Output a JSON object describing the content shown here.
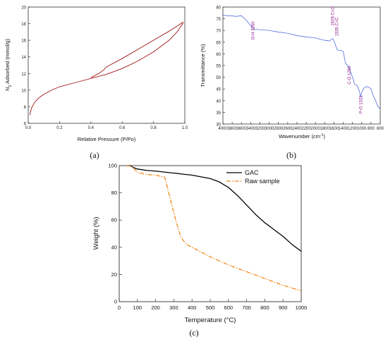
{
  "chart_data": [
    {
      "type": "line",
      "panel": "(a)",
      "xlabel": "Relative Pressure (P/Po)",
      "ylabel": "N2 Adsorbed (mmol/g)",
      "xlim": [
        0.0,
        1.0
      ],
      "ylim": [
        6,
        20
      ],
      "xticks": [
        "0.0",
        "0.2",
        "0.4",
        "0.6",
        "0.8",
        "1.0"
      ],
      "yticks": [
        "6",
        "8",
        "10",
        "12",
        "14",
        "16",
        "18",
        "20"
      ],
      "color": "#a01515",
      "series": [
        {
          "x": [
            0.01,
            0.02,
            0.04,
            0.07,
            0.1,
            0.15,
            0.2,
            0.3,
            0.4,
            0.5,
            0.6,
            0.7,
            0.8,
            0.9,
            0.95,
            0.99
          ],
          "y": [
            7.0,
            7.8,
            8.5,
            9.1,
            9.5,
            10.0,
            10.4,
            10.9,
            11.4,
            11.9,
            12.6,
            13.5,
            14.6,
            16.0,
            17.0,
            18.1
          ]
        },
        {
          "x": [
            0.99,
            0.95,
            0.9,
            0.8,
            0.7,
            0.6,
            0.5,
            0.48,
            0.45,
            0.42,
            0.4
          ],
          "y": [
            18.2,
            17.7,
            17.1,
            16.0,
            14.9,
            13.8,
            12.8,
            12.4,
            12.0,
            11.7,
            11.5
          ]
        }
      ]
    },
    {
      "type": "line",
      "panel": "(b)",
      "xlabel": "Wavenumber (cm⁻¹)",
      "ylabel": "Transmittance (%)",
      "xlim": [
        4000,
        600
      ],
      "ylim": [
        30,
        80
      ],
      "xticks": [
        "4000",
        "3800",
        "3600",
        "3400",
        "3200",
        "3000",
        "2800",
        "2600",
        "2400",
        "2200",
        "2000",
        "1800",
        "1600",
        "1400",
        "1200",
        "1000",
        "800",
        "600"
      ],
      "yticks": [
        "30",
        "35",
        "40",
        "45",
        "50",
        "55",
        "60",
        "65",
        "70",
        "75",
        "80"
      ],
      "color": "#3a5bd9",
      "series": [
        {
          "x": [
            4000,
            3900,
            3800,
            3700,
            3600,
            3500,
            3400,
            3350,
            3300,
            3200,
            3000,
            2800,
            2600,
            2400,
            2200,
            2000,
            1900,
            1800,
            1700,
            1628,
            1600,
            1535,
            1500,
            1450,
            1400,
            1350,
            1300,
            1269,
            1200,
            1150,
            1100,
            1050,
            1022,
            1000,
            950,
            900,
            850,
            800,
            750,
            700,
            650,
            600
          ],
          "y": [
            76.5,
            76.3,
            76.2,
            76.0,
            76.3,
            74.5,
            72.0,
            71.0,
            70.5,
            70.3,
            70.0,
            69.3,
            68.8,
            67.8,
            67.2,
            66.8,
            66.2,
            65.8,
            65.5,
            66.5,
            65.5,
            62.0,
            61.5,
            61.5,
            61.0,
            56.0,
            55.0,
            54.0,
            50.0,
            47.0,
            46.5,
            44.0,
            41.5,
            43.5,
            45.5,
            46.0,
            45.8,
            45.0,
            42.0,
            40.0,
            37.5,
            36.5
          ]
        }
      ],
      "annotations": [
        "O-H 3350",
        "1628 C=O",
        "1535 C=C",
        "C-O 1269",
        "P-O 1022"
      ]
    },
    {
      "type": "line",
      "panel": "(c)",
      "xlabel": "Temperature (°C)",
      "ylabel": "Weight (%)",
      "xlim": [
        0,
        1000
      ],
      "ylim": [
        0,
        100
      ],
      "xticks": [
        "0",
        "100",
        "200",
        "300",
        "400",
        "500",
        "600",
        "700",
        "800",
        "900",
        "1000"
      ],
      "yticks": [
        "0",
        "20",
        "40",
        "60",
        "80",
        "100"
      ],
      "legend": "top-right",
      "series": [
        {
          "name": "GAC",
          "color": "#000000",
          "style": "solid",
          "x": [
            40,
            60,
            80,
            100,
            150,
            200,
            300,
            400,
            500,
            550,
            600,
            650,
            700,
            750,
            800,
            850,
            900,
            950,
            1000
          ],
          "y": [
            100,
            100,
            98.5,
            97.5,
            96.5,
            96,
            94.5,
            93,
            90.5,
            88,
            84,
            78,
            71,
            64,
            58,
            53,
            48,
            42,
            37
          ]
        },
        {
          "name": "Raw sample",
          "color": "#f08a1c",
          "style": "dashdot",
          "x": [
            40,
            70,
            100,
            150,
            200,
            250,
            280,
            310,
            340,
            370,
            400,
            500,
            600,
            700,
            800,
            900,
            1000
          ],
          "y": [
            100,
            99.5,
            95,
            93.5,
            93,
            91.5,
            76,
            60,
            47,
            42,
            40,
            33,
            27,
            22,
            17,
            12,
            8
          ]
        }
      ]
    }
  ]
}
